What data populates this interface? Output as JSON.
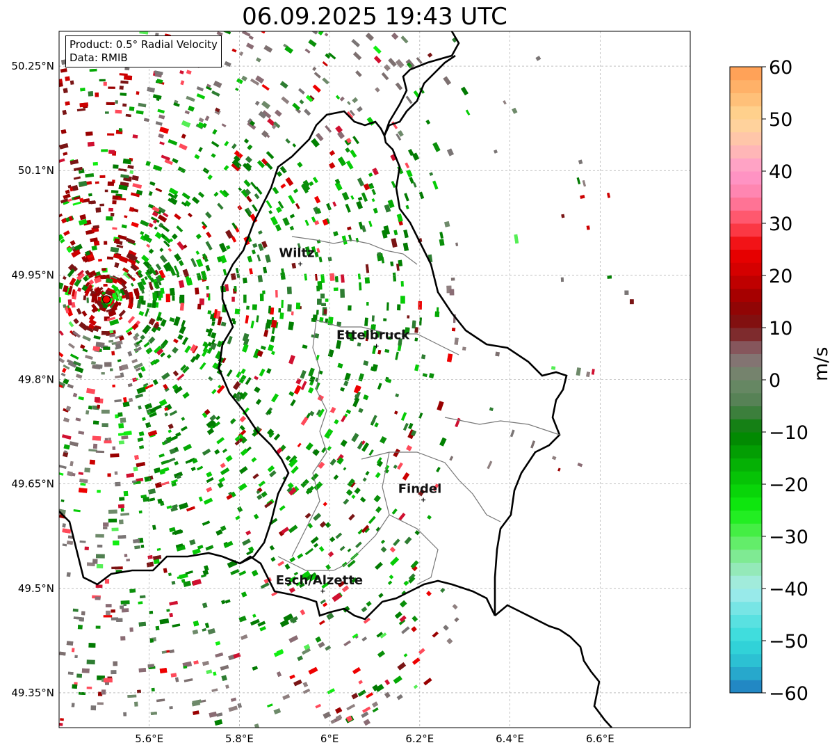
{
  "title": "06.09.2025 19:43 UTC",
  "legend": {
    "product": "Product: 0.5° Radial Velocity",
    "data": "Data: RMIB"
  },
  "map": {
    "extent": {
      "lon_min": 5.4,
      "lon_max": 6.8,
      "lat_min": 49.3,
      "lat_max": 50.3
    },
    "lon_ticks": [
      {
        "value": 5.6,
        "label": "5.6°E"
      },
      {
        "value": 5.8,
        "label": "5.8°E"
      },
      {
        "value": 6.0,
        "label": "6°E"
      },
      {
        "value": 6.2,
        "label": "6.2°E"
      },
      {
        "value": 6.4,
        "label": "6.4°E"
      },
      {
        "value": 6.6,
        "label": "6.6°E"
      }
    ],
    "lat_ticks": [
      {
        "value": 50.25,
        "label": "50.25°N"
      },
      {
        "value": 50.1,
        "label": "50.1°N"
      },
      {
        "value": 49.95,
        "label": "49.95°N"
      },
      {
        "value": 49.8,
        "label": "49.8°N"
      },
      {
        "value": 49.65,
        "label": "49.65°N"
      },
      {
        "value": 49.5,
        "label": "49.5°N"
      },
      {
        "value": 49.35,
        "label": "49.35°N"
      }
    ],
    "gridlines": true,
    "radar_site": {
      "lon": 5.505,
      "lat": 49.915
    },
    "cities": [
      {
        "name": "Wiltz",
        "lon": 5.935,
        "lat": 49.966
      },
      {
        "name": "Ettelbruck",
        "lon": 6.104,
        "lat": 49.848
      },
      {
        "name": "Findel",
        "lon": 6.208,
        "lat": 49.627
      },
      {
        "name": "Esch/Alzette",
        "lon": 5.985,
        "lat": 49.496
      }
    ]
  },
  "colorbar": {
    "unit": "m/s",
    "min": -60,
    "max": 60,
    "tick_labels": [
      {
        "value": 60,
        "label": "60"
      },
      {
        "value": 50,
        "label": "50"
      },
      {
        "value": 40,
        "label": "40"
      },
      {
        "value": 30,
        "label": "30"
      },
      {
        "value": 20,
        "label": "20"
      },
      {
        "value": 10,
        "label": "10"
      },
      {
        "value": 0,
        "label": "0"
      },
      {
        "value": -10,
        "label": "−10"
      },
      {
        "value": -20,
        "label": "−20"
      },
      {
        "value": -30,
        "label": "−30"
      },
      {
        "value": -40,
        "label": "−40"
      },
      {
        "value": -50,
        "label": "−50"
      },
      {
        "value": -60,
        "label": "−60"
      }
    ],
    "colors": {
      "c_-60": "#1f78c0",
      "c_-55": "#2ab8d0",
      "c_-50": "#33dbdb",
      "c_-45": "#66e3e3",
      "c_-40": "#a8ecec",
      "c_-35": "#8de8a8",
      "c_-30": "#55ee55",
      "c_-25": "#11ee11",
      "c_-20": "#06cc06",
      "c_-15": "#04a804",
      "c_-10": "#018001",
      "c_-5": "#4f7f4f",
      "c_0": "#6e8a6a",
      "c_5": "#8a6c74",
      "c_10": "#7a1515",
      "c_15": "#990000",
      "c_20": "#cc0000",
      "c_25": "#ee0000",
      "c_30": "#ff4a5a",
      "c_35": "#ff80a8",
      "c_40": "#ff99cc",
      "c_45": "#ffc0b0",
      "c_50": "#ffd895",
      "c_55": "#ffb870",
      "c_60": "#ff9a50"
    }
  }
}
